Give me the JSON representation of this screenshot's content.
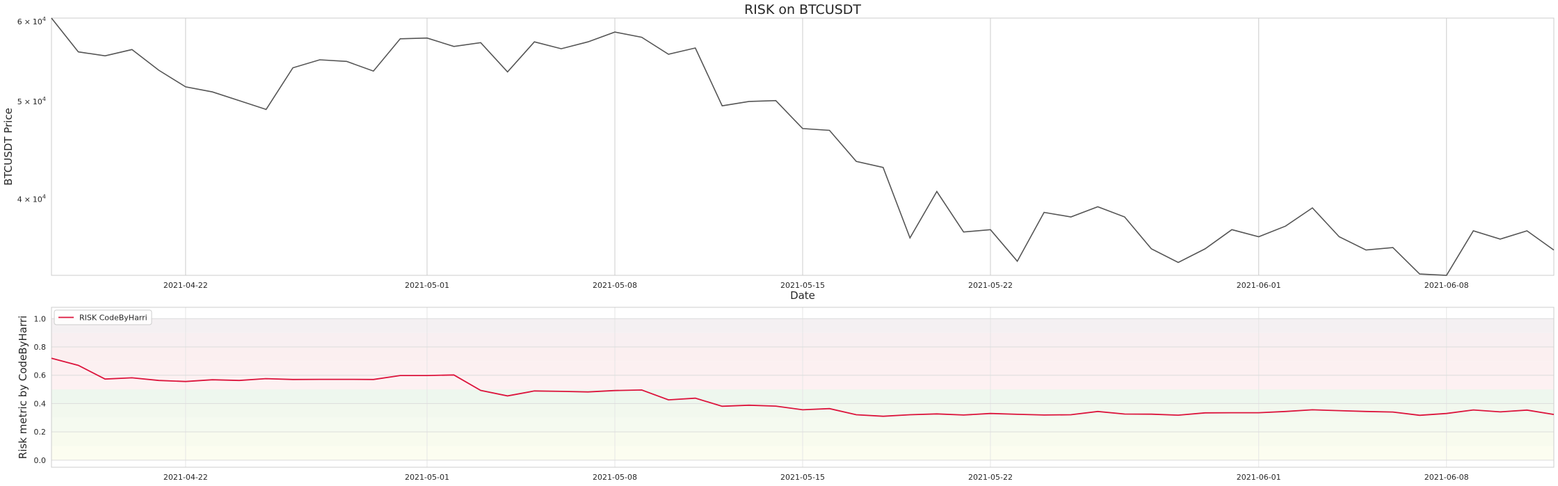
{
  "chart_data": [
    {
      "type": "line",
      "title": "RISK on BTCUSDT",
      "xlabel": "Date",
      "ylabel": "BTCUSDT Price",
      "yscale": "log",
      "ylim": [
        33600,
        60500
      ],
      "xlim": [
        "2021-04-17",
        "2021-06-12"
      ],
      "grid": "vertical",
      "x_ticks": [
        "2021-04-22",
        "2021-05-01",
        "2021-05-08",
        "2021-05-15",
        "2021-05-22",
        "2021-06-01",
        "2021-06-08"
      ],
      "y_ticks": [
        {
          "value": 60000,
          "mantissa": "6",
          "times": "×",
          "base": "10",
          "exp": "4"
        },
        {
          "value": 50000,
          "mantissa": "5",
          "times": "×",
          "base": "10",
          "exp": "4"
        },
        {
          "value": 40000,
          "mantissa": "4",
          "times": "×",
          "base": "10",
          "exp": "4"
        }
      ],
      "line_color": "#555555",
      "series": [
        {
          "x": [
            "2021-04-17",
            "2021-04-18",
            "2021-04-19",
            "2021-04-20",
            "2021-04-21",
            "2021-04-22",
            "2021-04-23",
            "2021-04-24",
            "2021-04-25",
            "2021-04-26",
            "2021-04-27",
            "2021-04-28",
            "2021-04-29",
            "2021-04-30",
            "2021-05-01",
            "2021-05-02",
            "2021-05-03",
            "2021-05-04",
            "2021-05-05",
            "2021-05-06",
            "2021-05-07",
            "2021-05-08",
            "2021-05-09",
            "2021-05-10",
            "2021-05-11",
            "2021-05-12",
            "2021-05-13",
            "2021-05-14",
            "2021-05-15",
            "2021-05-16",
            "2021-05-17",
            "2021-05-18",
            "2021-05-19",
            "2021-05-20",
            "2021-05-21",
            "2021-05-22",
            "2021-05-23",
            "2021-05-24",
            "2021-05-25",
            "2021-05-26",
            "2021-05-27",
            "2021-05-28",
            "2021-05-29",
            "2021-05-30",
            "2021-05-31",
            "2021-06-01",
            "2021-06-02",
            "2021-06-03",
            "2021-06-04",
            "2021-06-05",
            "2021-06-06",
            "2021-06-07",
            "2021-06-08",
            "2021-06-09",
            "2021-06-10",
            "2021-06-11",
            "2021-06-12"
          ],
          "values": [
            60500,
            56000,
            55500,
            56300,
            53700,
            51700,
            51100,
            50100,
            49100,
            54000,
            55000,
            54800,
            53600,
            57700,
            57800,
            56700,
            57200,
            53500,
            57300,
            56400,
            57300,
            58600,
            57900,
            55700,
            56500,
            49500,
            50000,
            50100,
            47000,
            46800,
            43600,
            43000,
            36600,
            40700,
            37100,
            37300,
            34700,
            38800,
            38400,
            39300,
            38400,
            35700,
            34600,
            35700,
            37300,
            36700,
            37600,
            39200,
            36700,
            35600,
            35800,
            33700,
            33600,
            37200,
            36500,
            37200,
            35600
          ]
        }
      ]
    },
    {
      "type": "line",
      "title": "",
      "xlabel": "",
      "ylabel": "Risk metric by CodeByHarri",
      "ylim": [
        -0.05,
        1.08
      ],
      "xlim": [
        "2021-04-17",
        "2021-06-12"
      ],
      "grid": "both",
      "x_ticks": [
        "2021-04-22",
        "2021-05-01",
        "2021-05-08",
        "2021-05-15",
        "2021-05-22",
        "2021-06-01",
        "2021-06-08"
      ],
      "y_ticks": [
        "0.0",
        "0.2",
        "0.4",
        "0.6",
        "0.8",
        "1.0"
      ],
      "legend": "top-left",
      "bands": [
        {
          "from": 0.0,
          "to": 0.1,
          "color": "#fcfdf0"
        },
        {
          "from": 0.1,
          "to": 0.2,
          "color": "#f8fbee"
        },
        {
          "from": 0.2,
          "to": 0.3,
          "color": "#f5faf0"
        },
        {
          "from": 0.3,
          "to": 0.4,
          "color": "#f2f8ee"
        },
        {
          "from": 0.4,
          "to": 0.5,
          "color": "#eef7ee"
        },
        {
          "from": 0.5,
          "to": 0.6,
          "color": "#fdf1f2"
        },
        {
          "from": 0.6,
          "to": 0.7,
          "color": "#fcf0f1"
        },
        {
          "from": 0.7,
          "to": 0.8,
          "color": "#fbeff0"
        },
        {
          "from": 0.8,
          "to": 0.9,
          "color": "#f8eff1"
        },
        {
          "from": 0.9,
          "to": 1.0,
          "color": "#f4f0f2"
        }
      ],
      "line_color": "#dc143c",
      "series": [
        {
          "name": "RISK CodeByHarri",
          "x": [
            "2021-04-17",
            "2021-04-18",
            "2021-04-19",
            "2021-04-20",
            "2021-04-21",
            "2021-04-22",
            "2021-04-23",
            "2021-04-24",
            "2021-04-25",
            "2021-04-26",
            "2021-04-27",
            "2021-04-28",
            "2021-04-29",
            "2021-04-30",
            "2021-05-01",
            "2021-05-02",
            "2021-05-03",
            "2021-05-04",
            "2021-05-05",
            "2021-05-06",
            "2021-05-07",
            "2021-05-08",
            "2021-05-09",
            "2021-05-10",
            "2021-05-11",
            "2021-05-12",
            "2021-05-13",
            "2021-05-14",
            "2021-05-15",
            "2021-05-16",
            "2021-05-17",
            "2021-05-18",
            "2021-05-19",
            "2021-05-20",
            "2021-05-21",
            "2021-05-22",
            "2021-05-23",
            "2021-05-24",
            "2021-05-25",
            "2021-05-26",
            "2021-05-27",
            "2021-05-28",
            "2021-05-29",
            "2021-05-30",
            "2021-05-31",
            "2021-06-01",
            "2021-06-02",
            "2021-06-03",
            "2021-06-04",
            "2021-06-05",
            "2021-06-06",
            "2021-06-07",
            "2021-06-08",
            "2021-06-09",
            "2021-06-10",
            "2021-06-11",
            "2021-06-12"
          ],
          "values": [
            0.72,
            0.67,
            0.573,
            0.582,
            0.563,
            0.556,
            0.568,
            0.563,
            0.576,
            0.57,
            0.571,
            0.571,
            0.57,
            0.598,
            0.598,
            0.602,
            0.493,
            0.454,
            0.489,
            0.486,
            0.482,
            0.492,
            0.496,
            0.426,
            0.438,
            0.381,
            0.388,
            0.382,
            0.356,
            0.364,
            0.321,
            0.31,
            0.321,
            0.327,
            0.319,
            0.33,
            0.324,
            0.319,
            0.321,
            0.344,
            0.326,
            0.325,
            0.318,
            0.334,
            0.335,
            0.335,
            0.344,
            0.356,
            0.35,
            0.344,
            0.34,
            0.317,
            0.33,
            0.355,
            0.341,
            0.354,
            0.323
          ]
        }
      ]
    }
  ]
}
